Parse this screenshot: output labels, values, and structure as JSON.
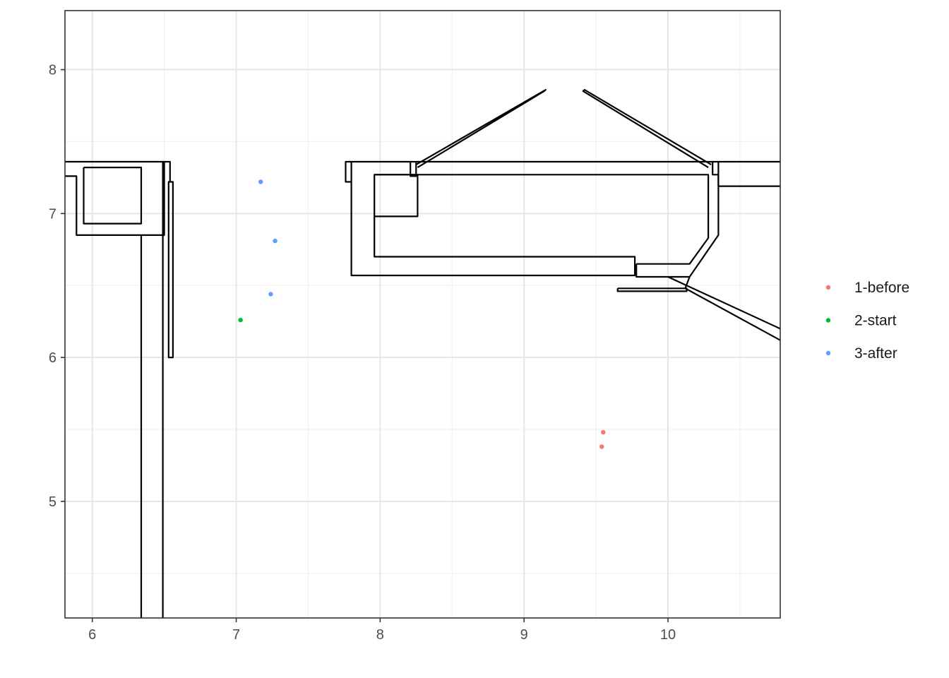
{
  "chart_data": {
    "type": "scatter",
    "xlim": [
      5.81,
      10.78
    ],
    "ylim": [
      4.19,
      8.41
    ],
    "x_ticks": [
      6,
      7,
      8,
      9,
      10
    ],
    "y_ticks": [
      5,
      6,
      7,
      8
    ],
    "x_tick_labels": [
      "6",
      "7",
      "8",
      "9",
      "10"
    ],
    "y_tick_labels": [
      "5",
      "6",
      "7",
      "8"
    ],
    "grid": true,
    "legend_position": "right",
    "series": [
      {
        "name": "1-before",
        "color": "#F8766D",
        "points": [
          [
            9.55,
            5.48
          ],
          [
            9.54,
            5.38
          ]
        ]
      },
      {
        "name": "2-start",
        "color": "#00BA38",
        "points": [
          [
            7.03,
            6.26
          ]
        ]
      },
      {
        "name": "3-after",
        "color": "#619CFF",
        "points": [
          [
            7.17,
            7.22
          ],
          [
            7.27,
            6.81
          ],
          [
            7.24,
            6.44
          ]
        ]
      }
    ],
    "shapes": [
      [
        [
          5.81,
          7.36
        ],
        [
          6.5,
          7.36
        ],
        [
          6.5,
          6.85
        ],
        [
          6.49,
          6.85
        ],
        [
          6.49,
          4.19
        ]
      ],
      [
        [
          5.81,
          7.26
        ],
        [
          5.89,
          7.26
        ],
        [
          5.89,
          6.85
        ],
        [
          6.49,
          6.85
        ]
      ],
      [
        [
          6.34,
          6.85
        ],
        [
          6.34,
          4.19
        ]
      ],
      [
        [
          6.5,
          7.36
        ],
        [
          6.54,
          7.36
        ],
        [
          6.54,
          7.22
        ],
        [
          6.56,
          7.22
        ],
        [
          6.56,
          6.0
        ],
        [
          6.53,
          6.0
        ],
        [
          6.53,
          7.22
        ],
        [
          6.54,
          7.22
        ]
      ],
      [
        [
          6.49,
          6.85
        ],
        [
          6.49,
          7.36
        ]
      ],
      [
        [
          5.94,
          7.32
        ],
        [
          6.34,
          7.32
        ],
        [
          6.34,
          6.93
        ],
        [
          5.94,
          6.93
        ],
        [
          5.94,
          7.32
        ]
      ],
      [
        [
          10.78,
          7.36
        ],
        [
          7.76,
          7.36
        ],
        [
          7.76,
          7.22
        ],
        [
          7.8,
          7.22
        ],
        [
          7.8,
          6.57
        ],
        [
          9.77,
          6.57
        ],
        [
          9.77,
          6.7
        ],
        [
          7.96,
          6.7
        ],
        [
          7.96,
          7.27
        ],
        [
          10.28,
          7.27
        ],
        [
          10.28,
          6.83
        ],
        [
          10.15,
          6.65
        ],
        [
          9.78,
          6.65
        ]
      ],
      [
        [
          7.8,
          7.36
        ],
        [
          7.8,
          7.22
        ]
      ],
      [
        [
          8.21,
          7.36
        ],
        [
          8.21,
          7.26
        ],
        [
          8.25,
          7.26
        ],
        [
          8.25,
          7.36
        ]
      ],
      [
        [
          7.96,
          7.27
        ],
        [
          8.26,
          7.27
        ],
        [
          8.26,
          6.98
        ],
        [
          7.96,
          6.98
        ]
      ],
      [
        [
          10.35,
          7.36
        ],
        [
          10.35,
          7.19
        ],
        [
          10.78,
          7.19
        ]
      ],
      [
        [
          10.31,
          7.36
        ],
        [
          10.31,
          7.27
        ],
        [
          10.35,
          7.27
        ]
      ],
      [
        [
          10.35,
          7.27
        ],
        [
          10.35,
          6.85
        ],
        [
          10.15,
          6.56
        ],
        [
          9.78,
          6.56
        ],
        [
          9.78,
          6.65
        ]
      ],
      [
        [
          9.65,
          6.48
        ],
        [
          10.13,
          6.48
        ],
        [
          10.13,
          6.46
        ],
        [
          9.65,
          6.46
        ],
        [
          9.65,
          6.48
        ]
      ],
      [
        [
          10.0,
          6.56
        ],
        [
          10.78,
          6.2
        ]
      ],
      [
        [
          10.12,
          6.48
        ],
        [
          10.78,
          6.12
        ]
      ],
      [
        [
          10.12,
          6.48
        ],
        [
          10.15,
          6.56
        ]
      ],
      [
        [
          8.25,
          7.34
        ],
        [
          9.15,
          7.86
        ],
        [
          9.14,
          7.85
        ],
        [
          8.26,
          7.32
        ]
      ],
      [
        [
          10.3,
          7.34
        ],
        [
          9.42,
          7.86
        ],
        [
          9.41,
          7.85
        ],
        [
          10.28,
          7.32
        ]
      ]
    ]
  }
}
